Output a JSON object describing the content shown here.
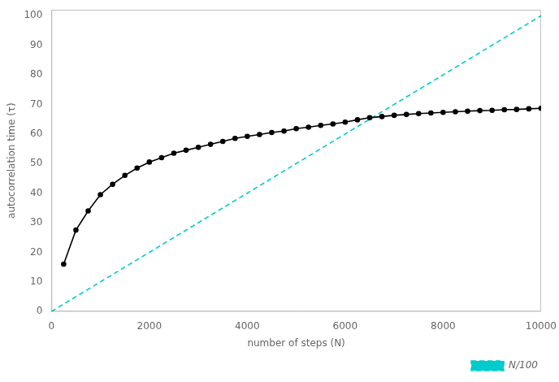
{
  "chart_data": {
    "type": "line",
    "xlabel": "number of steps (N)",
    "ylabel": "autocorrelation time (τ)",
    "xlim": [
      0,
      10000
    ],
    "ylim": [
      0,
      102
    ],
    "xticks": [
      0,
      2000,
      4000,
      6000,
      8000,
      10000
    ],
    "yticks": [
      0,
      10,
      20,
      30,
      40,
      50,
      60,
      70,
      80,
      90,
      100
    ],
    "grid": false,
    "legend": "lower right",
    "series": [
      {
        "x": [
          250,
          500,
          750,
          1000,
          1250,
          1500,
          1750,
          2000,
          2250,
          2500,
          2750,
          3000,
          3250,
          3500,
          3750,
          4000,
          4250,
          4500,
          4750,
          5000,
          5250,
          5500,
          5750,
          6000,
          6250,
          6500,
          6750,
          7000,
          7250,
          7500,
          7750,
          8000,
          8250,
          8500,
          8750,
          9000,
          9250,
          9500,
          9750,
          10000
        ],
        "values": [
          16.0,
          27.5,
          34.0,
          39.5,
          43.0,
          46.0,
          48.5,
          50.5,
          52.0,
          53.5,
          54.5,
          55.5,
          56.5,
          57.5,
          58.5,
          59.2,
          59.8,
          60.5,
          61.0,
          61.8,
          62.3,
          62.9,
          63.4,
          64.0,
          64.8,
          65.5,
          65.9,
          66.3,
          66.6,
          66.9,
          67.1,
          67.3,
          67.5,
          67.7,
          67.9,
          68.0,
          68.2,
          68.3,
          68.5,
          68.7
        ],
        "color": "#000000",
        "marker": "circle",
        "line_style": "solid"
      },
      {
        "name": "N/100",
        "x": [
          0,
          10000
        ],
        "values": [
          0,
          100
        ],
        "color": "#00cccc",
        "line_style": "dashed"
      }
    ]
  }
}
